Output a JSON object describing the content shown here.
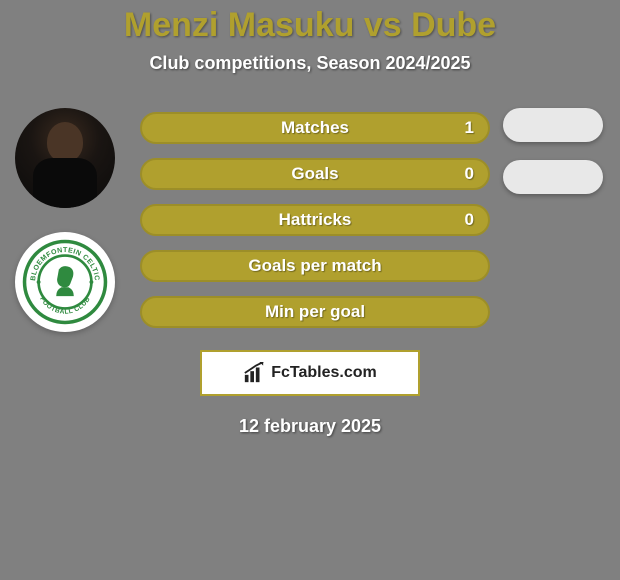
{
  "colors": {
    "page_bg": "#808080",
    "title": "#b0a02e",
    "subtitle": "#ffffff",
    "bar_fill": "#b0a02e",
    "bar_border": "#9c8e28",
    "bar_text": "#ffffff",
    "pill_fill": "#e8e8e8",
    "brand_border": "#b0a02e",
    "brand_bg": "#ffffff",
    "date_text": "#ffffff",
    "club_badge_stroke": "#2f8a3f"
  },
  "typography": {
    "title_size": 34,
    "subtitle_size": 18,
    "bar_label_size": 17,
    "bar_value_size": 17,
    "brand_size": 16,
    "date_size": 18
  },
  "title": "Menzi Masuku vs Dube",
  "subtitle": "Club competitions, Season 2024/2025",
  "stats": [
    {
      "label": "Matches",
      "value": "1",
      "show_value": true,
      "show_pill": true
    },
    {
      "label": "Goals",
      "value": "0",
      "show_value": true,
      "show_pill": true
    },
    {
      "label": "Hattricks",
      "value": "0",
      "show_value": true,
      "show_pill": false
    },
    {
      "label": "Goals per match",
      "value": "",
      "show_value": false,
      "show_pill": false
    },
    {
      "label": "Min per goal",
      "value": "",
      "show_value": false,
      "show_pill": false
    }
  ],
  "club_badge_text": "BLOEMFONTEIN CELTIC FOOTBALL CLUB",
  "brand": "FcTables.com",
  "date": "12 february 2025"
}
